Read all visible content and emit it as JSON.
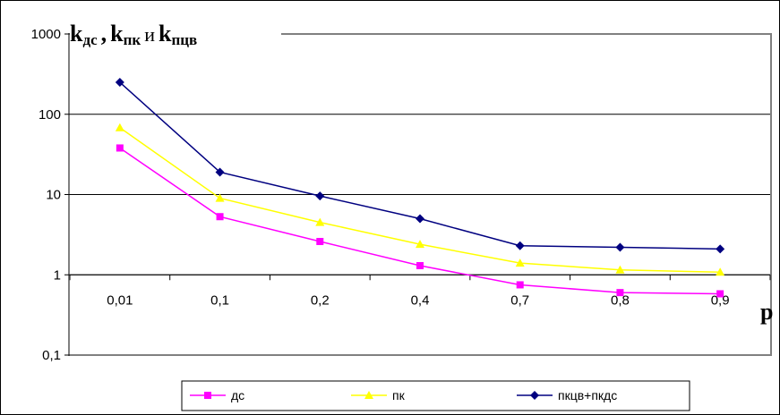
{
  "chart_data": {
    "type": "line",
    "categories": [
      "0,01",
      "0,1",
      "0,2",
      "0,4",
      "0,7",
      "0,8",
      "0,9"
    ],
    "y_scale": "log",
    "ylim": [
      0.1,
      1000
    ],
    "y_ticks": [
      "0,1",
      "1",
      "10",
      "100",
      "1000"
    ],
    "ylabel": {
      "k1": "k",
      "s1": "дс",
      "sep1": ",",
      "k2": "k",
      "s2": "пк",
      "sep2": "и",
      "k3": "k",
      "s3": "пцв"
    },
    "xlabel": "p",
    "grid": true,
    "legend_position": "bottom",
    "series": [
      {
        "name": "дс",
        "color": "#ff00ff",
        "marker": "square",
        "values": [
          38,
          5.3,
          2.6,
          1.3,
          0.75,
          0.6,
          0.58
        ]
      },
      {
        "name": "пк",
        "color": "#ffff00",
        "marker": "triangle",
        "values": [
          68,
          9,
          4.5,
          2.4,
          1.4,
          1.15,
          1.08
        ]
      },
      {
        "name": "пкцв+пкдс",
        "color": "#000080",
        "marker": "diamond",
        "values": [
          250,
          19,
          9.6,
          5.0,
          2.3,
          2.2,
          2.1
        ]
      }
    ]
  }
}
